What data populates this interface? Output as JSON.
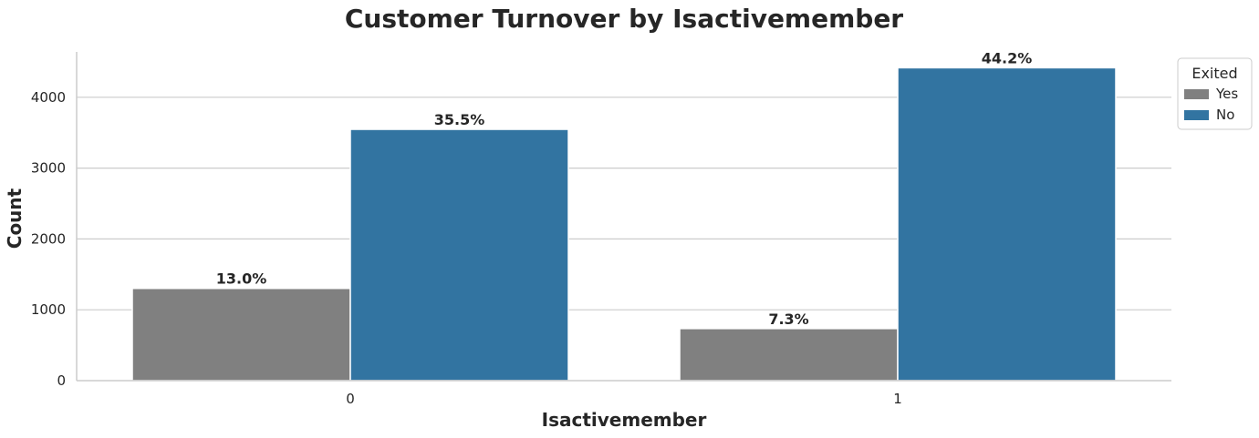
{
  "chart_data": {
    "type": "bar",
    "title": "Customer Turnover by Isactivemember",
    "xlabel": "Isactivemember",
    "ylabel": "Count",
    "categories": [
      "0",
      "1"
    ],
    "series": [
      {
        "name": "Yes",
        "values": [
          1302,
          735
        ],
        "labels": [
          "13.0%",
          "7.3%"
        ],
        "color": "#808080"
      },
      {
        "name": "No",
        "values": [
          3547,
          4416
        ],
        "labels": [
          "35.5%",
          "44.2%"
        ],
        "color": "#3274a1"
      }
    ],
    "ylim": [
      0,
      4640
    ],
    "yticks": [
      0,
      1000,
      2000,
      3000,
      4000
    ],
    "grid": "horizontal",
    "legend": {
      "title": "Exited",
      "placement": "top-right outside"
    }
  }
}
